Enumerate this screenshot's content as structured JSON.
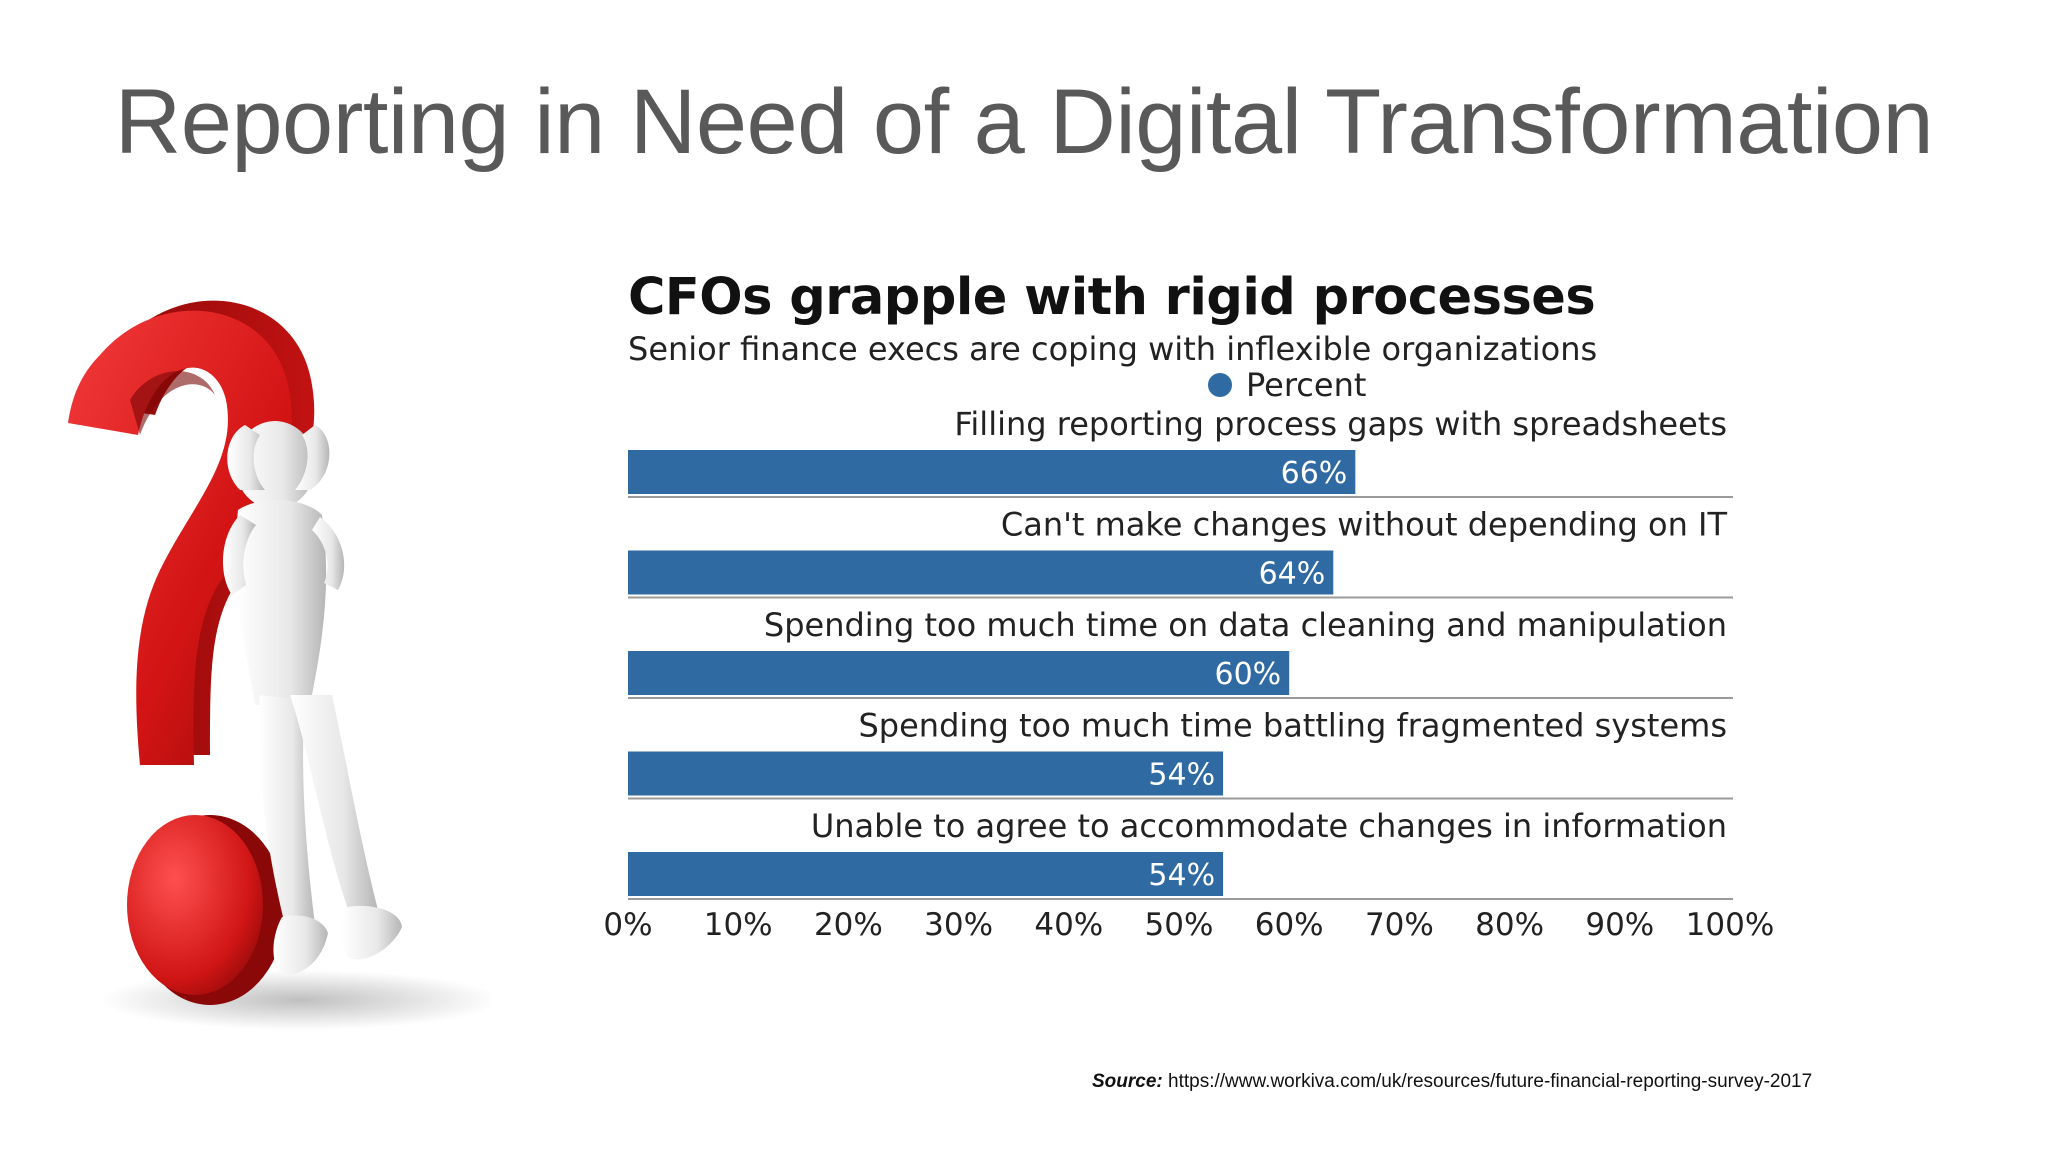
{
  "slide": {
    "title": "Reporting in Need of a Digital Transformation"
  },
  "chart_data": {
    "type": "bar",
    "orientation": "horizontal",
    "title": "CFOs grapple with rigid processes",
    "subtitle": "Senior finance execs are coping with inflexible organizations",
    "legend": {
      "entries": [
        "Percent"
      ],
      "placement": "top-right"
    },
    "categories": [
      "Filling reporting process gaps with spreadsheets",
      "Can't make changes without depending on IT",
      "Spending too much time on data cleaning and manipulation",
      "Spending too much time battling fragmented systems",
      "Unable to agree to accommodate changes in information"
    ],
    "series": [
      {
        "name": "Percent",
        "values": [
          66,
          64,
          60,
          54,
          54
        ],
        "data_labels": [
          "66%",
          "64%",
          "60%",
          "54%",
          "54%"
        ]
      }
    ],
    "xlim": [
      0,
      100
    ],
    "xticks": [
      "0%",
      "10%",
      "20%",
      "30%",
      "40%",
      "50%",
      "60%",
      "70%",
      "80%",
      "90%",
      "100%"
    ],
    "grid": false,
    "colors": {
      "bar": "#2f6aa3",
      "bar_label": "#ffffff",
      "separator": "#9a9a9a"
    }
  },
  "source": {
    "label": "Source:",
    "url": "https://www.workiva.com/uk/resources/future-financial-reporting-survey-2017"
  },
  "illustration": {
    "icon": "question-mark-figure-icon"
  }
}
